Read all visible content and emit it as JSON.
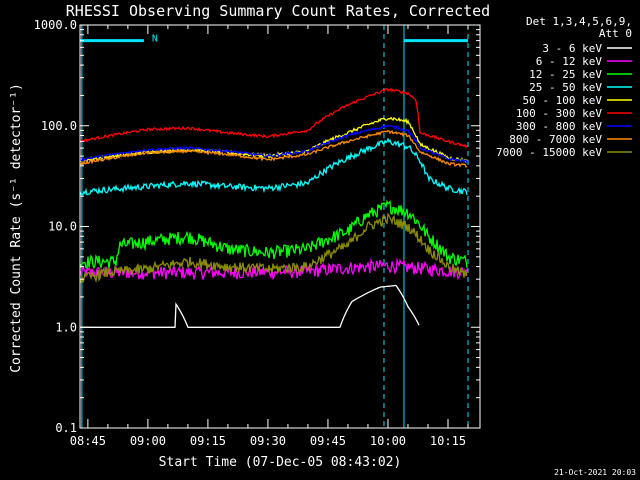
{
  "chart_data": {
    "type": "line",
    "title": "RHESSI Observing Summary Count Rates, Corrected",
    "xlabel": "Start Time (07-Dec-05 08:43:02)",
    "ylabel": "Corrected Count Rate (s⁻¹ detector⁻¹)",
    "yscale": "log",
    "ylim": [
      0.1,
      1000
    ],
    "y_ticks": [
      "1000.0",
      "100.0",
      "10.0",
      "1.0",
      "0.1"
    ],
    "xlim": [
      "08:43:02",
      "10:23:00"
    ],
    "x_ticks": [
      {
        "label": "08:45",
        "t": "08:45"
      },
      {
        "label": "09:00",
        "t": "09:00"
      },
      {
        "label": "09:15",
        "t": "09:15"
      },
      {
        "label": "09:30",
        "t": "09:30"
      },
      {
        "label": "09:45",
        "t": "09:45"
      },
      {
        "label": "10:00",
        "t": "10:00"
      },
      {
        "label": "10:15",
        "t": "10:15"
      }
    ],
    "legend_header": [
      "Det 1,3,4,5,6,9,",
      "Att 0"
    ],
    "legend_position": "outside-right",
    "footer_date": "21-Oct-2021 20:03",
    "annotations": [
      {
        "type": "bar",
        "t_start": "08:43:02",
        "t_end": "08:59",
        "y": 700
      },
      {
        "type": "label",
        "text": "N",
        "t": "09:00",
        "y": 750
      },
      {
        "type": "bar",
        "t_start": "10:04",
        "t_end": "10:20",
        "y": 700
      },
      {
        "type": "vline",
        "t": "08:43:30",
        "style": "solid"
      },
      {
        "type": "vline",
        "t": "09:59",
        "style": "dashed"
      },
      {
        "type": "vline",
        "t": "10:04",
        "style": "solid"
      },
      {
        "type": "vline",
        "t": "10:20",
        "style": "dashed"
      }
    ],
    "series": [
      {
        "name": "3 - 6 keV",
        "color": "#ffffff",
        "noise": 0.0,
        "t": [
          "08:43",
          "09:07",
          "09:07",
          "09:10",
          "09:10",
          "09:48",
          "09:51",
          "09:55",
          "09:58",
          "10:02",
          "10:05",
          "10:08"
        ],
        "values": [
          1.0,
          1.0,
          1.7,
          1.0,
          1.0,
          1.0,
          1.8,
          2.2,
          2.5,
          2.6,
          1.6,
          1.0
        ]
      },
      {
        "name": "6 - 12 keV",
        "color": "#ff00ff",
        "noise": 0.15,
        "t": [
          "08:43",
          "09:00",
          "09:20",
          "09:40",
          "09:50",
          "10:00",
          "10:10",
          "10:20"
        ],
        "values": [
          3.5,
          3.5,
          3.5,
          3.6,
          3.9,
          4.1,
          3.8,
          3.5
        ]
      },
      {
        "name": "12 - 25 keV",
        "color": "#00ff00",
        "noise": 0.15,
        "t": [
          "08:43",
          "08:52",
          "08:53",
          "09:10",
          "09:20",
          "09:30",
          "09:40",
          "09:50",
          "09:55",
          "10:00",
          "10:05",
          "10:10",
          "10:15",
          "10:20"
        ],
        "values": [
          4.5,
          4.5,
          6.5,
          8.0,
          6.0,
          5.5,
          6.0,
          9.0,
          13.0,
          16.0,
          14.0,
          8.0,
          5.0,
          4.5
        ]
      },
      {
        "name": "25 - 50 keV",
        "color": "#00ffff",
        "noise": 0.07,
        "t": [
          "08:43",
          "09:00",
          "09:10",
          "09:20",
          "09:30",
          "09:40",
          "09:50",
          "10:00",
          "10:05",
          "10:08",
          "10:10",
          "10:15",
          "10:20"
        ],
        "values": [
          22,
          25,
          27,
          25,
          24,
          27,
          48,
          70,
          62,
          45,
          30,
          24,
          22
        ]
      },
      {
        "name": "50 - 100 keV",
        "color": "#ffff00",
        "noise": 0.04,
        "t": [
          "08:43",
          "09:00",
          "09:10",
          "09:20",
          "09:30",
          "09:40",
          "09:50",
          "10:00",
          "10:05",
          "10:08",
          "10:15",
          "10:20"
        ],
        "values": [
          45,
          55,
          58,
          54,
          50,
          56,
          85,
          120,
          110,
          65,
          48,
          45
        ]
      },
      {
        "name": "100 - 300 keV",
        "color": "#ff0000",
        "noise": 0.03,
        "t": [
          "08:43",
          "09:00",
          "09:10",
          "09:20",
          "09:30",
          "09:40",
          "09:50",
          "10:00",
          "10:05",
          "10:07",
          "10:08",
          "10:15",
          "10:20"
        ],
        "values": [
          70,
          92,
          95,
          85,
          78,
          90,
          160,
          230,
          210,
          180,
          85,
          70,
          62
        ]
      },
      {
        "name": "300 - 800 keV",
        "color": "#0000ff",
        "noise": 0.03,
        "t": [
          "08:43",
          "09:00",
          "09:10",
          "09:20",
          "09:30",
          "09:40",
          "09:50",
          "10:00",
          "10:05",
          "10:08",
          "10:15",
          "10:20"
        ],
        "values": [
          46,
          58,
          60,
          56,
          50,
          56,
          80,
          100,
          90,
          60,
          47,
          44
        ]
      },
      {
        "name": "800 - 7000 keV",
        "color": "#ff8c00",
        "noise": 0.03,
        "t": [
          "08:43",
          "09:00",
          "09:10",
          "09:20",
          "09:30",
          "09:40",
          "09:50",
          "10:00",
          "10:05",
          "10:08",
          "10:15",
          "10:20"
        ],
        "values": [
          42,
          54,
          56,
          52,
          46,
          52,
          70,
          88,
          80,
          55,
          42,
          40
        ]
      },
      {
        "name": "7000 - 15000 keV",
        "color": "#8b8b00",
        "noise": 0.12,
        "t": [
          "08:43",
          "08:50",
          "09:00",
          "09:10",
          "09:20",
          "09:30",
          "09:40",
          "09:50",
          "09:55",
          "10:00",
          "10:05",
          "10:10",
          "10:15",
          "10:20"
        ],
        "values": [
          3.0,
          3.5,
          3.8,
          4.5,
          4.0,
          3.8,
          4.0,
          6.5,
          10.0,
          12.0,
          10.0,
          6.0,
          4.0,
          3.2
        ]
      }
    ]
  }
}
